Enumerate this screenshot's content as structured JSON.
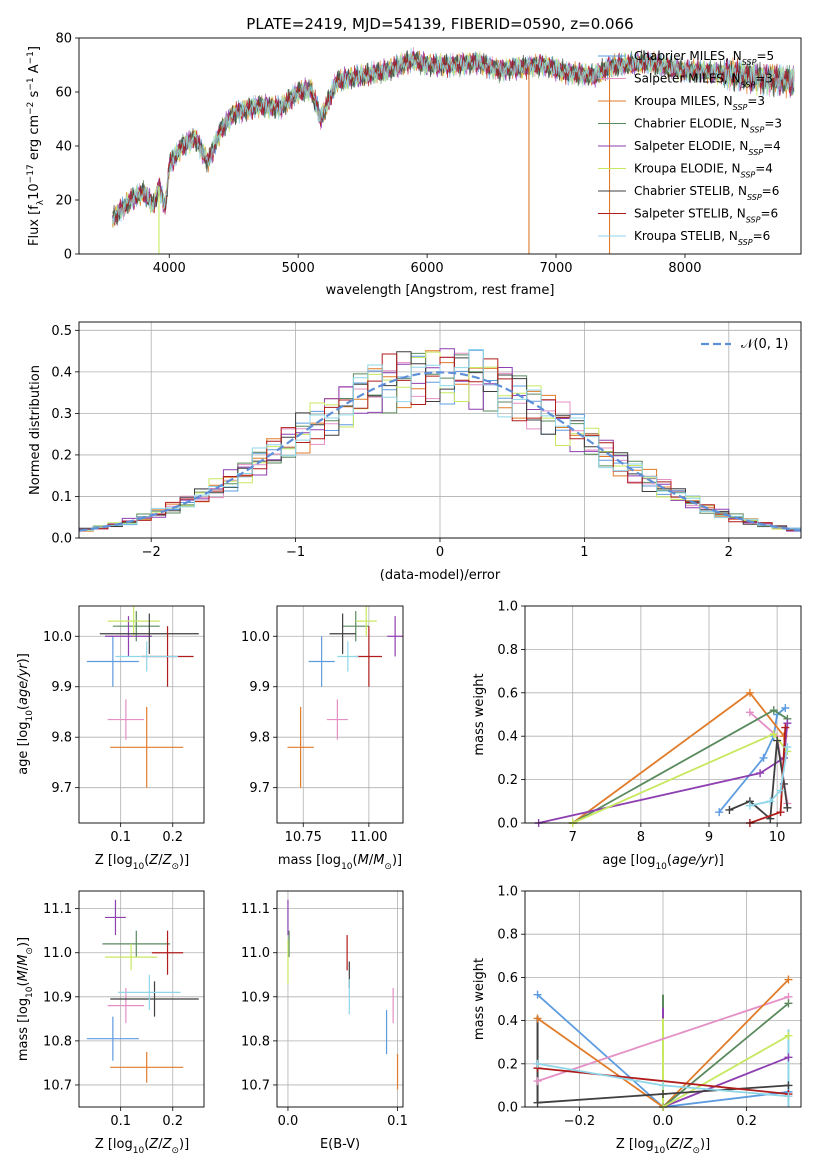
{
  "figure_title": "PLATE=2419, MJD=54139, FIBERID=0590, z=0.066",
  "legend_models": [
    {
      "label": "Chabrier MILES, N",
      "sub": "SSP",
      "tail": "=5",
      "color": "#5e9ce0"
    },
    {
      "label": "Salpeter MILES, N",
      "sub": "SSP",
      "tail": "=3",
      "color": "#e48fc5"
    },
    {
      "label": "Kroupa MILES, N",
      "sub": "SSP",
      "tail": "=3",
      "color": "#e07b29"
    },
    {
      "label": "Chabrier ELODIE, N",
      "sub": "SSP",
      "tail": "=3",
      "color": "#5a8a5e"
    },
    {
      "label": "Salpeter ELODIE, N",
      "sub": "SSP",
      "tail": "=4",
      "color": "#8e3fb0"
    },
    {
      "label": "Kroupa ELODIE, N",
      "sub": "SSP",
      "tail": "=4",
      "color": "#c8e860"
    },
    {
      "label": "Chabrier STELIB, N",
      "sub": "SSP",
      "tail": "=6",
      "color": "#3f3f3f"
    },
    {
      "label": "Salpeter STELIB, N",
      "sub": "SSP",
      "tail": "=6",
      "color": "#b01c1c"
    },
    {
      "label": "Kroupa STELIB, N",
      "sub": "SSP",
      "tail": "=6",
      "color": "#8fd6e8"
    }
  ],
  "chart_data": [
    {
      "id": "spectrum",
      "type": "line",
      "xlabel": "wavelength [Angstrom, rest frame]",
      "ylabel": "Flux [f_λ 10^-17 erg cm^-2 s^-1 A^-1]",
      "xlim": [
        3300,
        8900
      ],
      "ylim": [
        0,
        80
      ],
      "xticks": [
        4000,
        5000,
        6000,
        7000,
        8000
      ],
      "yticks": [
        0,
        20,
        40,
        60,
        80
      ],
      "grid": false,
      "spectrum_trend": {
        "x": [
          3560,
          3700,
          3800,
          3880,
          3920,
          3970,
          4000,
          4100,
          4200,
          4300,
          4400,
          4500,
          4700,
          4861,
          5000,
          5100,
          5175,
          5300,
          5500,
          5700,
          5890,
          6000,
          6200,
          6400,
          6563,
          6700,
          6900,
          7100,
          7300,
          7400,
          7500,
          7700,
          8000,
          8300,
          8600,
          8850
        ],
        "y": [
          13,
          20,
          23,
          18,
          25,
          17,
          33,
          40,
          43,
          34,
          46,
          52,
          55,
          54,
          60,
          61,
          50,
          64,
          66,
          68,
          72,
          70,
          70,
          71,
          68,
          69,
          70,
          67,
          66,
          69,
          70,
          71,
          68,
          67,
          65,
          64
        ]
      },
      "dropouts": [
        {
          "series": "Kroupa ELODIE",
          "x": 3920,
          "to": 0
        },
        {
          "series": "Kroupa MILES",
          "x": 6790,
          "to": 0
        },
        {
          "series": "Kroupa MILES",
          "x": 7415,
          "to": 0
        }
      ]
    },
    {
      "id": "residuals",
      "type": "bar",
      "xlabel": "(data-model)/error",
      "ylabel": "Normed distribution",
      "xlim": [
        -2.5,
        2.5
      ],
      "ylim": [
        0,
        0.52
      ],
      "xticks": [
        -2,
        -1,
        0,
        1,
        2
      ],
      "yticks": [
        0.0,
        0.1,
        0.2,
        0.3,
        0.4,
        0.5
      ],
      "grid": true,
      "legend": "top-right",
      "reference": {
        "name": "𝒩(0, 1)",
        "mean": 0,
        "sigma": 1,
        "color": "#5e8fd8"
      },
      "bins": {
        "start": -2.5,
        "width": 0.1,
        "count": 50
      }
    },
    {
      "id": "age_vs_Z",
      "type": "scatter",
      "xlabel": "Z [log10(Z/Z⊙)]",
      "ylabel": "age [log10(age/yr)]",
      "xlim": [
        0.02,
        0.26
      ],
      "ylim": [
        9.63,
        10.06
      ],
      "xticks": [
        0.1,
        0.2
      ],
      "yticks": [
        9.7,
        9.8,
        9.9,
        10.0
      ],
      "grid": true,
      "points": [
        {
          "series": "Chabrier MILES",
          "x": 0.085,
          "y": 9.95,
          "xerr": 0.05,
          "yerr": 0.05
        },
        {
          "series": "Salpeter MILES",
          "x": 0.11,
          "y": 9.835,
          "xerr": 0.035,
          "yerr": 0.04
        },
        {
          "series": "Kroupa MILES",
          "x": 0.15,
          "y": 9.78,
          "xerr": 0.07,
          "yerr": 0.08
        },
        {
          "series": "Chabrier ELODIE",
          "x": 0.13,
          "y": 10.02,
          "xerr": 0.045,
          "yerr": 0.03
        },
        {
          "series": "Salpeter ELODIE",
          "x": 0.115,
          "y": 10.0,
          "xerr": 0.045,
          "yerr": 0.04
        },
        {
          "series": "Kroupa ELODIE",
          "x": 0.125,
          "y": 10.03,
          "xerr": 0.05,
          "yerr": 0.03
        },
        {
          "series": "Chabrier STELIB",
          "x": 0.155,
          "y": 10.005,
          "xerr": 0.095,
          "yerr": 0.04
        },
        {
          "series": "Salpeter STELIB",
          "x": 0.19,
          "y": 9.96,
          "xerr": 0.05,
          "yerr": 0.06
        },
        {
          "series": "Kroupa STELIB",
          "x": 0.15,
          "y": 9.96,
          "xerr": 0.06,
          "yerr": 0.03
        }
      ]
    },
    {
      "id": "age_vs_mass",
      "type": "scatter",
      "xlabel": "mass [log10(M/M⊙)]",
      "ylabel": "",
      "xlim": [
        10.65,
        11.13
      ],
      "ylim": [
        9.63,
        10.06
      ],
      "xticks": [
        10.75,
        11.0
      ],
      "yticks": [
        9.7,
        9.8,
        9.9,
        10.0
      ],
      "grid": true,
      "points": [
        {
          "series": "Chabrier MILES",
          "x": 10.82,
          "y": 9.95,
          "xerr": 0.05,
          "yerr": 0.05
        },
        {
          "series": "Salpeter MILES",
          "x": 10.88,
          "y": 9.835,
          "xerr": 0.04,
          "yerr": 0.04
        },
        {
          "series": "Kroupa MILES",
          "x": 10.74,
          "y": 9.78,
          "xerr": 0.05,
          "yerr": 0.08
        },
        {
          "series": "Chabrier ELODIE",
          "x": 10.95,
          "y": 10.02,
          "xerr": 0.05,
          "yerr": 0.03
        },
        {
          "series": "Salpeter ELODIE",
          "x": 11.1,
          "y": 10.0,
          "xerr": 0.03,
          "yerr": 0.04
        },
        {
          "series": "Kroupa ELODIE",
          "x": 10.99,
          "y": 10.03,
          "xerr": 0.04,
          "yerr": 0.03
        },
        {
          "series": "Chabrier STELIB",
          "x": 10.9,
          "y": 10.005,
          "xerr": 0.05,
          "yerr": 0.04
        },
        {
          "series": "Salpeter STELIB",
          "x": 11.0,
          "y": 9.96,
          "xerr": 0.05,
          "yerr": 0.06
        },
        {
          "series": "Kroupa STELIB",
          "x": 10.92,
          "y": 9.96,
          "xerr": 0.04,
          "yerr": 0.03
        }
      ]
    },
    {
      "id": "weight_vs_age",
      "type": "line",
      "xlabel": "age [log10(age/yr)]",
      "ylabel": "mass weight",
      "xlim": [
        6.3,
        10.35
      ],
      "ylim": [
        0,
        1.0
      ],
      "xticks": [
        7,
        8,
        9,
        10
      ],
      "yticks": [
        0.0,
        0.2,
        0.4,
        0.6,
        0.8,
        1.0
      ],
      "grid": true,
      "series": [
        {
          "name": "Chabrier MILES",
          "x": [
            9.15,
            9.8,
            9.95,
            10.0,
            10.12
          ],
          "y": [
            0.05,
            0.3,
            0.4,
            0.5,
            0.53
          ]
        },
        {
          "name": "Salpeter MILES",
          "x": [
            9.6,
            10.0,
            10.15
          ],
          "y": [
            0.51,
            0.4,
            0.09
          ]
        },
        {
          "name": "Kroupa MILES",
          "x": [
            7.0,
            9.6,
            10.1
          ],
          "y": [
            0.0,
            0.6,
            0.4
          ]
        },
        {
          "name": "Chabrier ELODIE",
          "x": [
            7.0,
            9.95,
            10.15
          ],
          "y": [
            0.0,
            0.52,
            0.48
          ]
        },
        {
          "name": "Salpeter ELODIE",
          "x": [
            6.5,
            9.75,
            10.1,
            10.15
          ],
          "y": [
            0.0,
            0.23,
            0.3,
            0.46
          ]
        },
        {
          "name": "Kroupa ELODIE",
          "x": [
            7.0,
            9.95,
            10.15
          ],
          "y": [
            0.0,
            0.41,
            0.33
          ]
        },
        {
          "name": "Chabrier STELIB",
          "x": [
            9.3,
            9.6,
            9.9,
            10.0,
            10.1,
            10.15
          ],
          "y": [
            0.06,
            0.1,
            0.02,
            0.38,
            0.18,
            0.07
          ]
        },
        {
          "name": "Salpeter STELIB",
          "x": [
            9.6,
            10.05,
            10.12
          ],
          "y": [
            0.0,
            0.05,
            0.44
          ]
        },
        {
          "name": "Kroupa STELIB",
          "x": [
            9.6,
            9.9,
            10.05,
            10.15
          ],
          "y": [
            0.08,
            0.1,
            0.15,
            0.35
          ]
        }
      ]
    },
    {
      "id": "mass_vs_Z",
      "type": "scatter",
      "xlabel": "Z [log10(Z/Z⊙)]",
      "ylabel": "mass [log10(M/M⊙)]",
      "xlim": [
        0.02,
        0.26
      ],
      "ylim": [
        10.65,
        11.14
      ],
      "xticks": [
        0.1,
        0.2
      ],
      "yticks": [
        10.7,
        10.8,
        10.9,
        11.0,
        11.1
      ],
      "grid": true,
      "points": [
        {
          "series": "Chabrier MILES",
          "x": 0.085,
          "y": 10.805,
          "xerr": 0.05,
          "yerr": 0.05
        },
        {
          "series": "Salpeter MILES",
          "x": 0.11,
          "y": 10.88,
          "xerr": 0.035,
          "yerr": 0.04
        },
        {
          "series": "Kroupa MILES",
          "x": 0.15,
          "y": 10.74,
          "xerr": 0.07,
          "yerr": 0.035
        },
        {
          "series": "Chabrier ELODIE",
          "x": 0.13,
          "y": 11.02,
          "xerr": 0.065,
          "yerr": 0.03
        },
        {
          "series": "Salpeter ELODIE",
          "x": 0.09,
          "y": 11.08,
          "xerr": 0.02,
          "yerr": 0.04
        },
        {
          "series": "Kroupa ELODIE",
          "x": 0.12,
          "y": 10.99,
          "xerr": 0.05,
          "yerr": 0.03
        },
        {
          "series": "Chabrier STELIB",
          "x": 0.165,
          "y": 10.895,
          "xerr": 0.085,
          "yerr": 0.04
        },
        {
          "series": "Salpeter STELIB",
          "x": 0.19,
          "y": 11.0,
          "xerr": 0.03,
          "yerr": 0.05
        },
        {
          "series": "Kroupa STELIB",
          "x": 0.155,
          "y": 10.91,
          "xerr": 0.06,
          "yerr": 0.04
        }
      ]
    },
    {
      "id": "mass_vs_EBV",
      "type": "scatter",
      "xlabel": "E(B-V)",
      "ylabel": "",
      "xlim": [
        -0.01,
        0.105
      ],
      "ylim": [
        10.65,
        11.14
      ],
      "xticks": [
        0.0,
        0.1
      ],
      "yticks": [
        10.7,
        10.8,
        10.9,
        11.0,
        11.1
      ],
      "grid": true,
      "points": [
        {
          "series": "Chabrier MILES",
          "x": 0.09,
          "y": 10.82,
          "xerr": 0.0,
          "yerr": 0.05
        },
        {
          "series": "Salpeter MILES",
          "x": 0.096,
          "y": 10.88,
          "xerr": 0.0,
          "yerr": 0.04
        },
        {
          "series": "Kroupa MILES",
          "x": 0.1,
          "y": 10.73,
          "xerr": 0.0,
          "yerr": 0.04
        },
        {
          "series": "Chabrier ELODIE",
          "x": 0.001,
          "y": 11.02,
          "xerr": 0.0,
          "yerr": 0.03
        },
        {
          "series": "Salpeter ELODIE",
          "x": 0.0,
          "y": 11.08,
          "xerr": 0.0,
          "yerr": 0.04
        },
        {
          "series": "Kroupa ELODIE",
          "x": 0.0,
          "y": 10.98,
          "xerr": 0.0,
          "yerr": 0.05
        },
        {
          "series": "Chabrier STELIB",
          "x": 0.056,
          "y": 10.95,
          "xerr": 0.0,
          "yerr": 0.03
        },
        {
          "series": "Salpeter STELIB",
          "x": 0.054,
          "y": 11.0,
          "xerr": 0.0,
          "yerr": 0.04
        },
        {
          "series": "Kroupa STELIB",
          "x": 0.056,
          "y": 10.9,
          "xerr": 0.0,
          "yerr": 0.04
        }
      ]
    },
    {
      "id": "weight_vs_Z",
      "type": "line",
      "xlabel": "Z [log10(Z/Z⊙)]",
      "ylabel": "mass weight",
      "xlim": [
        -0.33,
        0.33
      ],
      "ylim": [
        0,
        1.0
      ],
      "xticks": [
        -0.2,
        0.0,
        0.2
      ],
      "yticks": [
        0.0,
        0.2,
        0.4,
        0.6,
        0.8,
        1.0
      ],
      "grid": true,
      "series": [
        {
          "name": "Chabrier MILES",
          "x": [
            -0.3,
            0.0,
            0.3
          ],
          "y": [
            0.52,
            0.0,
            0.07
          ]
        },
        {
          "name": "Salpeter MILES",
          "x": [
            -0.3,
            0.3
          ],
          "y": [
            0.12,
            0.51
          ]
        },
        {
          "name": "Kroupa MILES",
          "x": [
            -0.3,
            0.0,
            0.3
          ],
          "y": [
            0.41,
            0.0,
            0.59
          ]
        },
        {
          "name": "Chabrier ELODIE",
          "x": [
            0.0,
            0.3
          ],
          "y": [
            0.0,
            0.48
          ]
        },
        {
          "name": "Salpeter ELODIE",
          "x": [
            0.0,
            0.3
          ],
          "y": [
            0.0,
            0.23
          ]
        },
        {
          "name": "Kroupa ELODIE",
          "x": [
            0.0,
            0.3
          ],
          "y": [
            0.0,
            0.33
          ]
        },
        {
          "name": "Chabrier STELIB",
          "x": [
            -0.3,
            0.0,
            0.3
          ],
          "y": [
            0.02,
            0.06,
            0.1
          ]
        },
        {
          "name": "Salpeter STELIB",
          "x": [
            -0.3,
            0.3
          ],
          "y": [
            0.18,
            0.06
          ]
        },
        {
          "name": "Kroupa STELIB",
          "x": [
            -0.3,
            0.0,
            0.3
          ],
          "y": [
            0.2,
            0.1,
            0.05
          ]
        }
      ],
      "vertical_bars": [
        {
          "series": "Chabrier ELODIE",
          "x": 0.0,
          "y": [
            0.0,
            0.52
          ]
        },
        {
          "series": "Salpeter ELODIE",
          "x": 0.0,
          "y": [
            0.0,
            0.46
          ]
        },
        {
          "series": "Kroupa ELODIE",
          "x": 0.0,
          "y": [
            0.0,
            0.41
          ]
        },
        {
          "series": "Chabrier STELIB",
          "x": -0.3,
          "y": [
            0.02,
            0.42
          ]
        },
        {
          "series": "Kroupa STELIB",
          "x": 0.3,
          "y": [
            0.0,
            0.36
          ]
        }
      ]
    }
  ]
}
